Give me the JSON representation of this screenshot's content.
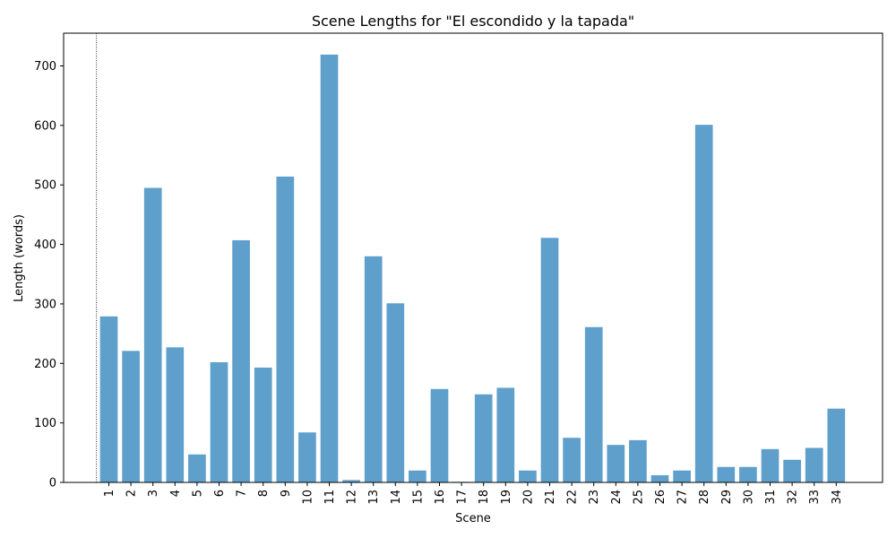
{
  "chart_data": {
    "type": "bar",
    "title": "Scene Lengths for \"El escondido y la tapada\"",
    "xlabel": "Scene",
    "ylabel": "Length (words)",
    "ylim": [
      0,
      755
    ],
    "yticks": [
      0,
      100,
      200,
      300,
      400,
      500,
      600,
      700
    ],
    "grid": false,
    "bar_color": "#5f9fcc",
    "reference_line": {
      "x_category": "1",
      "style": "dotted",
      "color": "#000000"
    },
    "categories": [
      "1",
      "2",
      "3",
      "4",
      "5",
      "6",
      "7",
      "8",
      "9",
      "10",
      "11",
      "12",
      "13",
      "14",
      "15",
      "16",
      "17",
      "18",
      "19",
      "20",
      "21",
      "22",
      "23",
      "24",
      "25",
      "26",
      "27",
      "28",
      "29",
      "30",
      "31",
      "32",
      "33",
      "34"
    ],
    "values": [
      279,
      221,
      495,
      227,
      47,
      202,
      407,
      193,
      514,
      84,
      719,
      4,
      380,
      301,
      20,
      157,
      1,
      148,
      159,
      20,
      411,
      75,
      261,
      63,
      71,
      12,
      20,
      601,
      26,
      26,
      56,
      38,
      58,
      124
    ]
  }
}
